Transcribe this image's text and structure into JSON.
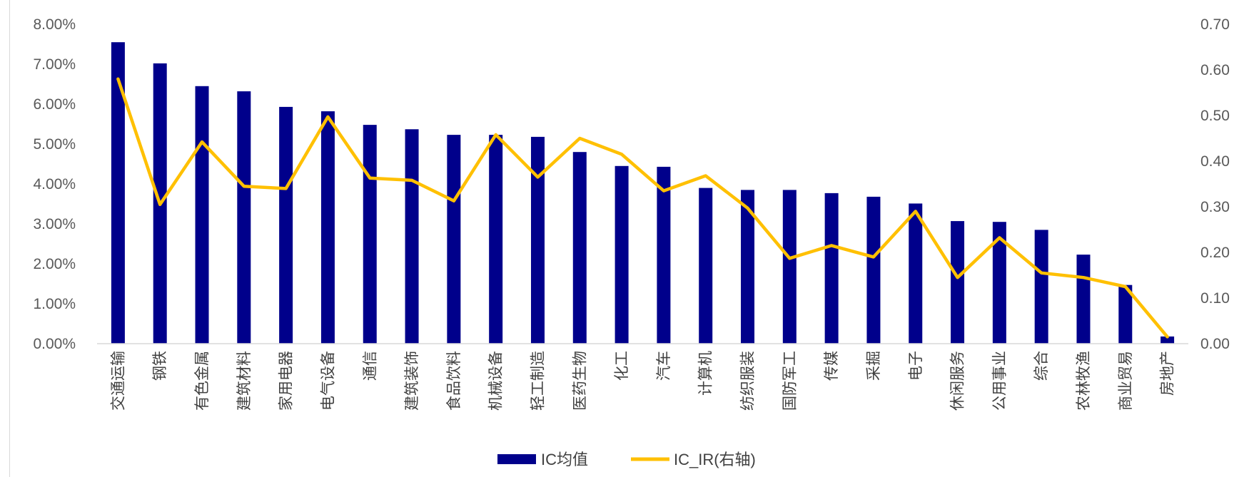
{
  "chart_data": {
    "type": "bar",
    "categories": [
      "交通运输",
      "钢铁",
      "有色金属",
      "建筑材料",
      "家用电器",
      "电气设备",
      "通信",
      "建筑装饰",
      "食品饮料",
      "机械设备",
      "轻工制造",
      "医药生物",
      "化工",
      "汽车",
      "计算机",
      "纺织服装",
      "国防军工",
      "传媒",
      "采掘",
      "电子",
      "休闲服务",
      "公用事业",
      "综合",
      "农林牧渔",
      "商业贸易",
      "房地产"
    ],
    "series": [
      {
        "name": "IC均值",
        "type": "bar",
        "axis": "left",
        "color": "#00008B",
        "values": [
          7.55,
          7.02,
          6.45,
          6.32,
          5.93,
          5.82,
          5.48,
          5.37,
          5.23,
          5.23,
          5.18,
          4.8,
          4.45,
          4.43,
          3.9,
          3.85,
          3.85,
          3.77,
          3.68,
          3.51,
          3.07,
          3.05,
          2.85,
          2.23,
          1.47,
          0.18
        ]
      },
      {
        "name": "IC_IR(右轴)",
        "type": "line",
        "axis": "right",
        "color": "#FFC000",
        "values": [
          0.58,
          0.305,
          0.442,
          0.345,
          0.34,
          0.497,
          0.363,
          0.358,
          0.313,
          0.458,
          0.365,
          0.45,
          0.415,
          0.335,
          0.368,
          0.297,
          0.187,
          0.215,
          0.19,
          0.29,
          0.145,
          0.232,
          0.155,
          0.145,
          0.125,
          0.015
        ]
      }
    ],
    "y_left": {
      "min": 0,
      "max": 8,
      "step": 1,
      "tick_labels": [
        "0.00%",
        "1.00%",
        "2.00%",
        "3.00%",
        "4.00%",
        "5.00%",
        "6.00%",
        "7.00%",
        "8.00%"
      ]
    },
    "y_right": {
      "min": 0,
      "max": 0.7,
      "step": 0.1,
      "tick_labels": [
        "0.00",
        "0.10",
        "0.20",
        "0.30",
        "0.40",
        "0.50",
        "0.60",
        "0.70"
      ]
    },
    "grid": false,
    "legend": {
      "position": "bottom",
      "entries": [
        "IC均值",
        "IC_IR(右轴)"
      ]
    }
  }
}
